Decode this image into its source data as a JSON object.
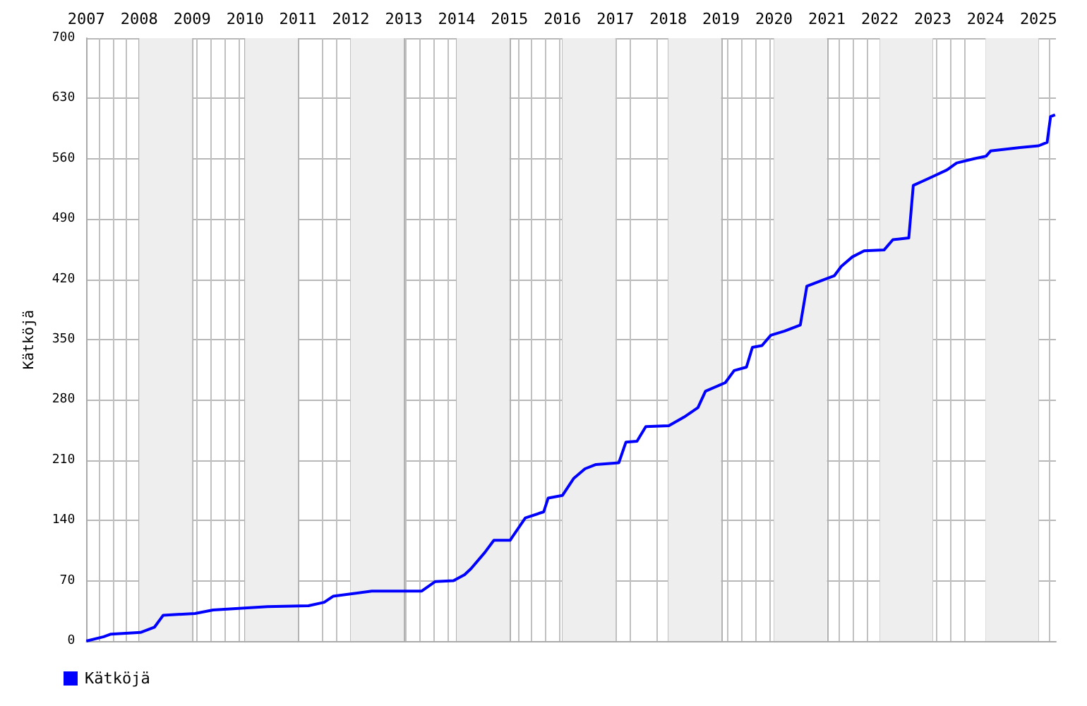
{
  "chart_data": {
    "type": "line",
    "bands": [
      {
        "axis": "x",
        "from": "2008",
        "to": "2009",
        "color": "#eeeeee"
      },
      {
        "axis": "x",
        "from": "2010",
        "to": "2011",
        "color": "#eeeeee"
      },
      {
        "axis": "x",
        "from": "2012",
        "to": "2013",
        "color": "#eeeeee"
      },
      {
        "axis": "x",
        "from": "2014",
        "to": "2015",
        "color": "#eeeeee"
      },
      {
        "axis": "x",
        "from": "2016",
        "to": "2017",
        "color": "#eeeeee"
      },
      {
        "axis": "x",
        "from": "2018",
        "to": "2019",
        "color": "#eeeeee"
      },
      {
        "axis": "x",
        "from": "2020",
        "to": "2021",
        "color": "#eeeeee"
      },
      {
        "axis": "x",
        "from": "2022",
        "to": "2023",
        "color": "#eeeeee"
      },
      {
        "axis": "x",
        "from": "2024",
        "to": "2025",
        "color": "#eeeeee"
      }
    ],
    "ylabel": "Kätköjä",
    "x": [
      "2007-01-01",
      "2007-05-01",
      "2007-06-20",
      "2008-01-10",
      "2008-04-15",
      "2008-06-15",
      "2009-01-20",
      "2009-05-25",
      "2010-06-05",
      "2011-03-15",
      "2011-07-01",
      "2011-09-01",
      "2012-05-25",
      "2013-05-05",
      "2013-08-05",
      "2013-12-10",
      "2014-02-25",
      "2014-04-10",
      "2014-07-15",
      "2014-09-15",
      "2015-01-05",
      "2015-04-20",
      "2015-08-25",
      "2015-09-25",
      "2016-01-01",
      "2016-03-20",
      "2016-06-05",
      "2016-08-20",
      "2017-01-25",
      "2017-03-15",
      "2017-05-30",
      "2017-07-30",
      "2018-01-05",
      "2018-04-20",
      "2018-07-25",
      "2018-09-15",
      "2019-01-30",
      "2019-04-01",
      "2019-06-25",
      "2019-08-05",
      "2019-10-10",
      "2019-12-10",
      "2020-03-15",
      "2020-07-01",
      "2020-08-15",
      "2020-11-15",
      "2021-02-20",
      "2021-04-10",
      "2021-06-25",
      "2021-09-15",
      "2022-01-30",
      "2022-04-01",
      "2022-07-20",
      "2022-08-20",
      "2022-10-25",
      "2023-01-10",
      "2023-04-10",
      "2023-06-15",
      "2023-10-15",
      "2024-01-05",
      "2024-02-05",
      "2024-08-25",
      "2025-01-01",
      "2025-03-01",
      "2025-03-25",
      "2025-04-25"
    ],
    "series": [
      {
        "name": "Kätköjä",
        "color": "#0000ff",
        "values": [
          0,
          5,
          8,
          10,
          16,
          30,
          32,
          36,
          40,
          41,
          45,
          52,
          58,
          58,
          69,
          70,
          77,
          84,
          103,
          117,
          117,
          143,
          150,
          166,
          169,
          189,
          200,
          205,
          207,
          231,
          232,
          249,
          250,
          260,
          271,
          290,
          300,
          314,
          318,
          341,
          343,
          355,
          360,
          367,
          412,
          418,
          424,
          435,
          446,
          453,
          454,
          466,
          468,
          529,
          534,
          540,
          547,
          555,
          560,
          563,
          569,
          573,
          575,
          579,
          609,
          611
        ]
      }
    ],
    "xlim": [
      "2007-01-01",
      "2025-05-01"
    ],
    "xticks": [
      "2007",
      "2008",
      "2009",
      "2010",
      "2011",
      "2012",
      "2013",
      "2014",
      "2015",
      "2016",
      "2017",
      "2018",
      "2019",
      "2020",
      "2021",
      "2022",
      "2023",
      "2024",
      "2025"
    ],
    "ylim": [
      0,
      700
    ],
    "yticks": [
      0,
      70,
      140,
      210,
      280,
      350,
      420,
      490,
      560,
      630,
      700
    ],
    "grid": true,
    "legend": "bottom left",
    "marker": "none",
    "line_style": "solid"
  }
}
